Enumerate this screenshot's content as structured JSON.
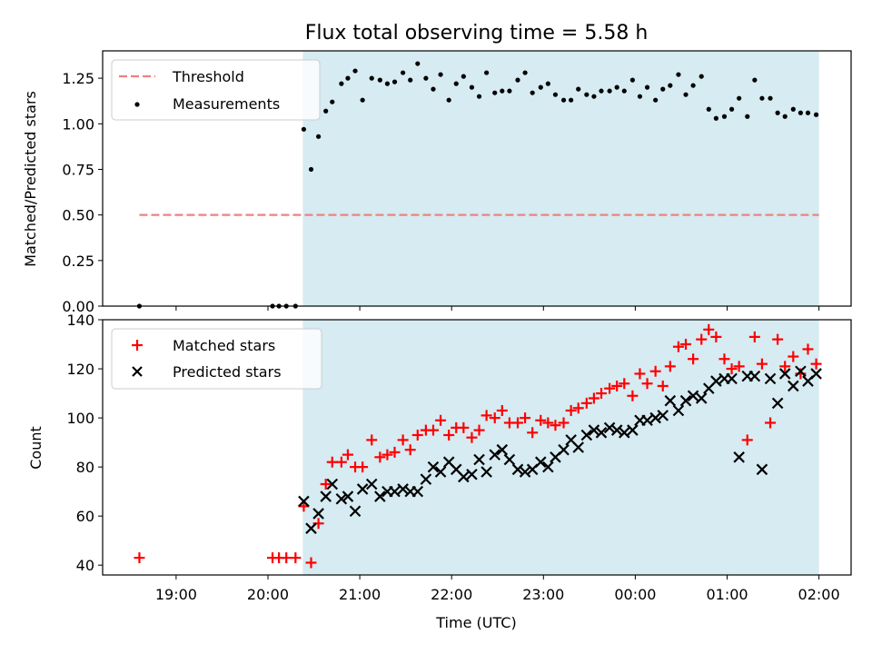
{
  "chart_data": [
    {
      "type": "scatter",
      "title": "Flux total observing time = 5.58 h",
      "xlabel": "",
      "ylabel": "Matched/Predicted stars",
      "xlim": [
        18.2,
        26.35
      ],
      "ylim": [
        0.0,
        1.4
      ],
      "yticks": [
        0.0,
        0.25,
        0.5,
        0.75,
        1.0,
        1.25
      ],
      "ytick_labels": [
        "0.00",
        "0.25",
        "0.50",
        "0.75",
        "1.00",
        "1.25"
      ],
      "shaded_span": [
        20.38,
        26.0
      ],
      "threshold": {
        "name": "Threshold",
        "y": 0.5,
        "x_start": 18.6,
        "x_end": 26.0,
        "color": "#f08080"
      },
      "legend": [
        "Threshold",
        "Measurements"
      ],
      "series": [
        {
          "name": "Measurements",
          "x": [
            18.6,
            20.05,
            20.12,
            20.2,
            20.3,
            20.39,
            20.47,
            20.55,
            20.63,
            20.7,
            20.8,
            20.87,
            20.95,
            21.03,
            21.13,
            21.22,
            21.3,
            21.38,
            21.47,
            21.55,
            21.63,
            21.72,
            21.8,
            21.88,
            21.97,
            22.05,
            22.13,
            22.22,
            22.3,
            22.38,
            22.47,
            22.55,
            22.63,
            22.72,
            22.8,
            22.88,
            22.97,
            23.05,
            23.13,
            23.22,
            23.3,
            23.38,
            23.47,
            23.55,
            23.63,
            23.72,
            23.8,
            23.88,
            23.97,
            24.05,
            24.13,
            24.22,
            24.3,
            24.38,
            24.47,
            24.55,
            24.63,
            24.72,
            24.8,
            24.88,
            24.97,
            25.05,
            25.13,
            25.22,
            25.3,
            25.38,
            25.47,
            25.55,
            25.63,
            25.72,
            25.8,
            25.88,
            25.97
          ],
          "y": [
            0.0,
            0.0,
            0.0,
            0.0,
            0.0,
            0.97,
            0.75,
            0.93,
            1.07,
            1.12,
            1.22,
            1.25,
            1.29,
            1.13,
            1.25,
            1.24,
            1.22,
            1.23,
            1.28,
            1.24,
            1.33,
            1.25,
            1.19,
            1.27,
            1.13,
            1.22,
            1.26,
            1.2,
            1.15,
            1.28,
            1.17,
            1.18,
            1.18,
            1.24,
            1.28,
            1.17,
            1.2,
            1.22,
            1.16,
            1.13,
            1.13,
            1.19,
            1.16,
            1.15,
            1.18,
            1.18,
            1.2,
            1.18,
            1.24,
            1.15,
            1.2,
            1.13,
            1.19,
            1.21,
            1.27,
            1.16,
            1.21,
            1.26,
            1.08,
            1.03,
            1.04,
            1.08,
            1.14,
            1.04,
            1.24,
            1.14,
            1.14,
            1.06,
            1.04,
            1.08,
            1.06,
            1.06,
            1.05
          ],
          "color": "#000000"
        }
      ]
    },
    {
      "type": "scatter",
      "title": "",
      "xlabel": "Time (UTC)",
      "ylabel": "Count",
      "xlim": [
        18.2,
        26.35
      ],
      "ylim": [
        36,
        140
      ],
      "yticks": [
        40,
        60,
        80,
        100,
        120,
        140
      ],
      "ytick_labels": [
        "40",
        "60",
        "80",
        "100",
        "120",
        "140"
      ],
      "xticks": [
        19,
        20,
        21,
        22,
        23,
        24,
        25,
        26
      ],
      "xtick_labels": [
        "19:00",
        "20:00",
        "21:00",
        "22:00",
        "23:00",
        "00:00",
        "01:00",
        "02:00"
      ],
      "shaded_span": [
        20.38,
        26.0
      ],
      "legend": [
        "Matched stars",
        "Predicted stars"
      ],
      "series": [
        {
          "name": "Matched stars",
          "marker": "+",
          "color": "#ff0000",
          "x": [
            18.6,
            20.05,
            20.12,
            20.2,
            20.3,
            20.39,
            20.47,
            20.55,
            20.63,
            20.7,
            20.8,
            20.87,
            20.95,
            21.03,
            21.13,
            21.22,
            21.3,
            21.38,
            21.47,
            21.55,
            21.63,
            21.72,
            21.8,
            21.88,
            21.97,
            22.05,
            22.13,
            22.22,
            22.3,
            22.38,
            22.47,
            22.55,
            22.63,
            22.72,
            22.8,
            22.88,
            22.97,
            23.05,
            23.13,
            23.22,
            23.3,
            23.38,
            23.47,
            23.55,
            23.63,
            23.72,
            23.8,
            23.88,
            23.97,
            24.05,
            24.13,
            24.22,
            24.3,
            24.38,
            24.47,
            24.55,
            24.63,
            24.72,
            24.8,
            24.88,
            24.97,
            25.05,
            25.13,
            25.22,
            25.3,
            25.38,
            25.47,
            25.55,
            25.63,
            25.72,
            25.8,
            25.88,
            25.97
          ],
          "y": [
            43,
            43,
            43,
            43,
            43,
            64,
            41,
            57,
            73,
            82,
            82,
            85,
            80,
            80,
            91,
            84,
            85,
            86,
            91,
            87,
            93,
            95,
            95,
            99,
            93,
            96,
            96,
            92,
            95,
            101,
            100,
            103,
            98,
            98,
            100,
            94,
            99,
            98,
            97,
            98,
            103,
            104,
            106,
            108,
            110,
            112,
            113,
            114,
            109,
            118,
            114,
            119,
            113,
            121,
            129,
            130,
            124,
            132,
            136,
            133,
            124,
            120,
            121,
            91,
            133,
            122,
            98,
            132,
            121,
            125,
            118,
            128,
            122
          ]
        },
        {
          "name": "Predicted stars",
          "marker": "x",
          "color": "#000000",
          "x": [
            20.39,
            20.47,
            20.55,
            20.63,
            20.7,
            20.8,
            20.87,
            20.95,
            21.03,
            21.13,
            21.22,
            21.3,
            21.38,
            21.47,
            21.55,
            21.63,
            21.72,
            21.8,
            21.88,
            21.97,
            22.05,
            22.13,
            22.22,
            22.3,
            22.38,
            22.47,
            22.55,
            22.63,
            22.72,
            22.8,
            22.88,
            22.97,
            23.05,
            23.13,
            23.22,
            23.3,
            23.38,
            23.47,
            23.55,
            23.63,
            23.72,
            23.8,
            23.88,
            23.97,
            24.05,
            24.13,
            24.22,
            24.3,
            24.38,
            24.47,
            24.55,
            24.63,
            24.72,
            24.8,
            24.88,
            24.97,
            25.05,
            25.13,
            25.22,
            25.3,
            25.38,
            25.47,
            25.55,
            25.63,
            25.72,
            25.8,
            25.88,
            25.97
          ],
          "y": [
            66,
            55,
            61,
            68,
            73,
            67,
            68,
            62,
            71,
            73,
            68,
            70,
            70,
            71,
            70,
            70,
            75,
            80,
            78,
            82,
            79,
            76,
            77,
            83,
            78,
            85,
            87,
            83,
            79,
            78,
            79,
            82,
            80,
            84,
            87,
            91,
            88,
            93,
            95,
            94,
            96,
            95,
            94,
            95,
            99,
            99,
            100,
            101,
            107,
            103,
            107,
            109,
            108,
            112,
            115,
            116,
            116,
            84,
            117,
            117,
            79,
            116,
            106,
            118,
            113,
            119,
            115,
            118
          ]
        }
      ]
    }
  ]
}
